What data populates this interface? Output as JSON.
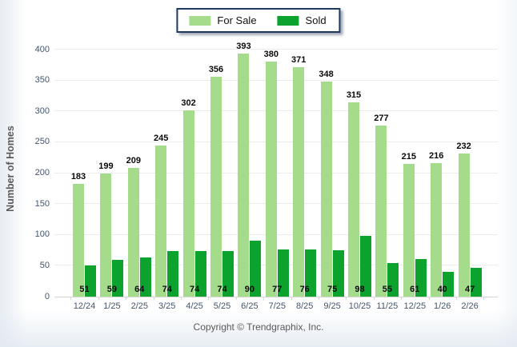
{
  "legend": {
    "items": [
      {
        "label": "For Sale",
        "color": "#A5DC8C"
      },
      {
        "label": "Sold",
        "color": "#0BA32E"
      }
    ]
  },
  "chart_data": {
    "type": "bar",
    "title": "",
    "xlabel": "",
    "ylabel": "Number of Homes",
    "categories": [
      "12/24",
      "1/25",
      "2/25",
      "3/25",
      "4/25",
      "5/25",
      "6/25",
      "7/25",
      "8/25",
      "9/25",
      "10/25",
      "11/25",
      "12/25",
      "1/26",
      "2/26"
    ],
    "series": [
      {
        "name": "For Sale",
        "color": "#A5DC8C",
        "values": [
          183,
          199,
          209,
          245,
          302,
          356,
          393,
          380,
          371,
          348,
          315,
          277,
          215,
          216,
          232
        ]
      },
      {
        "name": "Sold",
        "color": "#0BA32E",
        "values": [
          51,
          59,
          64,
          74,
          74,
          74,
          90,
          77,
          76,
          75,
          98,
          55,
          61,
          40,
          47
        ]
      }
    ],
    "ylim": [
      0,
      400
    ],
    "yticks": [
      0,
      50,
      100,
      150,
      200,
      250,
      300,
      350,
      400
    ],
    "grid": true,
    "legend_position": "top-center",
    "value_labels": {
      "for_sale": "above-bar",
      "sold": "inside-bar-bottom"
    }
  },
  "colors": {
    "for_sale": "#A5DC8C",
    "sold": "#0BA32E",
    "axis_text": "#44546A",
    "gridline": "#EDEDED",
    "legend_border": "#1E3A60"
  },
  "footer": {
    "copyright": "Copyright © Trendgraphix, Inc."
  }
}
